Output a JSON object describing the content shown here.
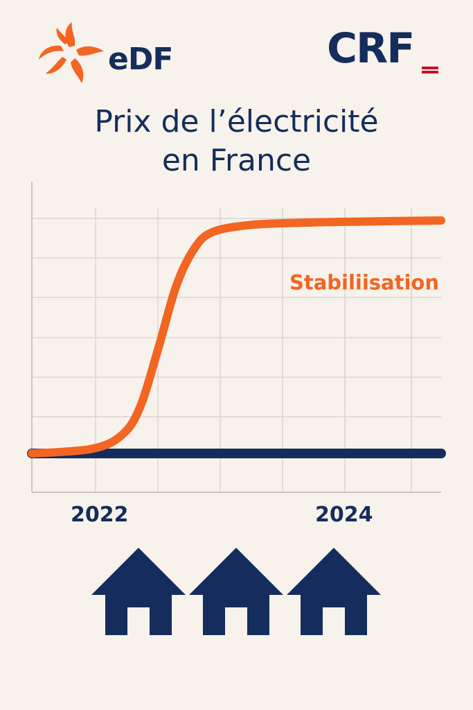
{
  "logos": {
    "edf": {
      "text": "eDF",
      "color": "#f26522"
    },
    "crf": {
      "text": "CRF",
      "accent": "#c8102e"
    }
  },
  "title": {
    "line1": "Prix de l’électricité",
    "line2": "en France"
  },
  "colors": {
    "background": "#f7f2eb",
    "navy": "#142d5c",
    "orange": "#f26522",
    "grid": "#d9d6d2"
  },
  "chart_data": {
    "type": "line",
    "title": "Prix de l’électricité en France",
    "xlabel": "",
    "ylabel": "",
    "x_ticks": [
      "2022",
      "2024"
    ],
    "xlim": [
      2021.5,
      2024.9
    ],
    "grid": true,
    "series": [
      {
        "color": "#f26522",
        "x": [
          2021.5,
          2022.0,
          2022.25,
          2022.4,
          2022.55,
          2022.7,
          2022.85,
          2023.0,
          2023.3,
          2023.7,
          2024.2,
          2024.9
        ],
        "y": [
          0.0,
          0.02,
          0.08,
          0.2,
          0.45,
          0.72,
          0.88,
          0.95,
          0.98,
          0.99,
          0.995,
          1.0
        ]
      },
      {
        "color": "#142d5c",
        "x": [
          2021.5,
          2024.9
        ],
        "y": [
          0.0,
          0.0
        ]
      }
    ],
    "annotations": [
      {
        "text": "Stabiliisation",
        "x": 2024.2,
        "y": 0.74,
        "color": "#f26522"
      }
    ]
  },
  "house_count": 3
}
